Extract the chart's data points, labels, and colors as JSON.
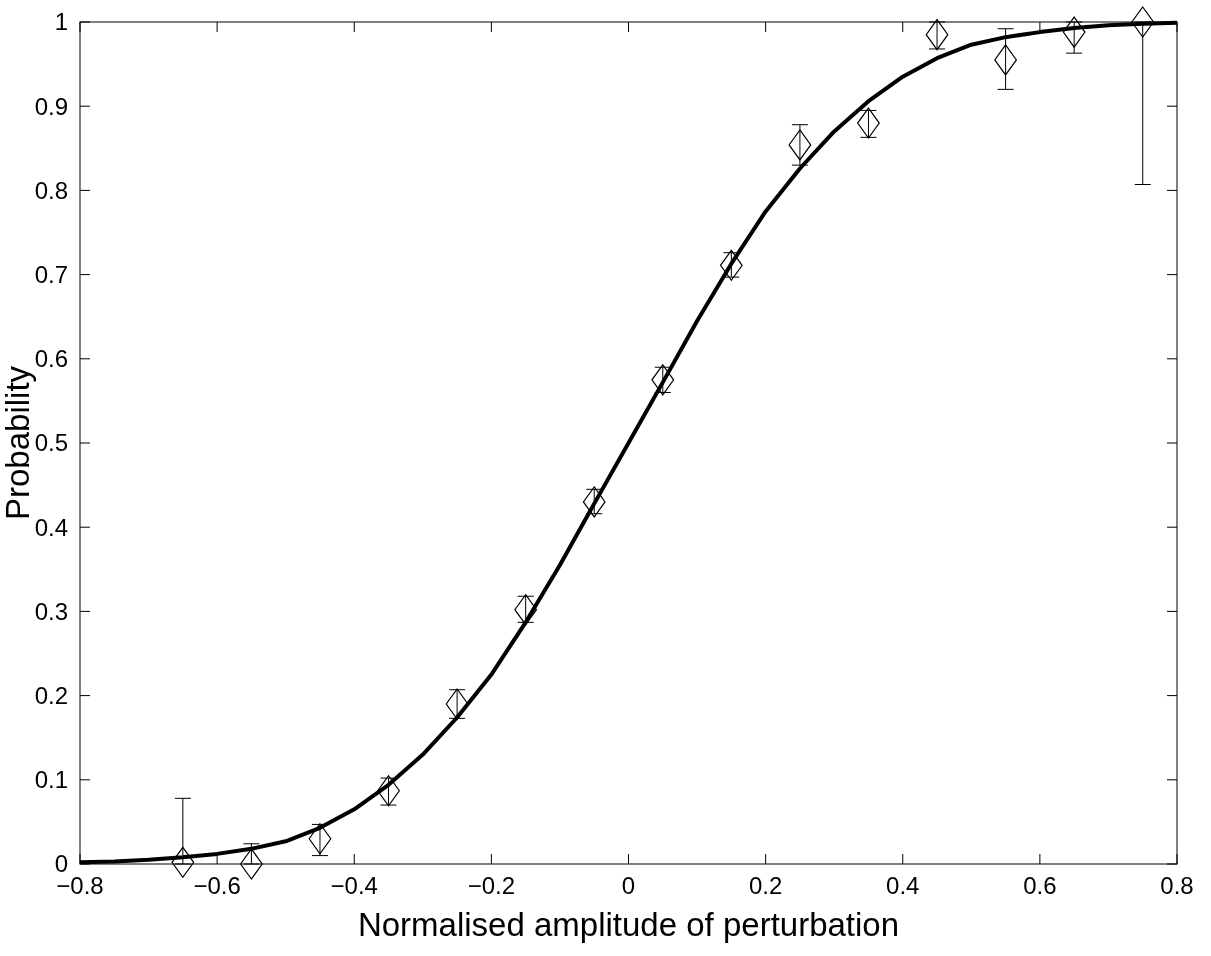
{
  "chart_data": {
    "type": "scatter",
    "xlabel": "Normalised amplitude of perturbation",
    "ylabel": "Probability",
    "xlim": [
      -0.8,
      0.8
    ],
    "ylim": [
      0,
      1
    ],
    "xticks": [
      {
        "value": -0.8,
        "label": "−0.8"
      },
      {
        "value": -0.6,
        "label": "−0.6"
      },
      {
        "value": -0.4,
        "label": "−0.4"
      },
      {
        "value": -0.2,
        "label": "−0.2"
      },
      0,
      0.2,
      0.4,
      0.6,
      0.8
    ],
    "yticks": [
      0,
      0.1,
      0.2,
      0.3,
      0.4,
      0.5,
      0.6,
      0.7,
      0.8,
      0.9,
      1
    ],
    "grid": false,
    "series": [
      {
        "type": "line",
        "color": "#000000",
        "marker": "none",
        "line_style": "solid",
        "x": [
          -0.8,
          -0.75,
          -0.7,
          -0.65,
          -0.6,
          -0.55,
          -0.5,
          -0.45,
          -0.4,
          -0.35,
          -0.3,
          -0.25,
          -0.2,
          -0.15,
          -0.1,
          -0.05,
          0,
          0.05,
          0.1,
          0.15,
          0.2,
          0.25,
          0.3,
          0.35,
          0.4,
          0.45,
          0.5,
          0.55,
          0.6,
          0.65,
          0.7,
          0.75,
          0.8
        ],
        "values": [
          0.002,
          0.003,
          0.005,
          0.008,
          0.012,
          0.018,
          0.027,
          0.043,
          0.065,
          0.094,
          0.13,
          0.174,
          0.225,
          0.287,
          0.355,
          0.428,
          0.5,
          0.572,
          0.645,
          0.713,
          0.775,
          0.826,
          0.87,
          0.906,
          0.935,
          0.957,
          0.973,
          0.982,
          0.988,
          0.993,
          0.996,
          0.998,
          0.999
        ]
      },
      {
        "type": "scatter",
        "color": "#000000",
        "marker": "diamond",
        "x": [
          -0.65,
          -0.55,
          -0.45,
          -0.35,
          -0.25,
          -0.15,
          -0.05,
          0.05,
          0.15,
          0.25,
          0.35,
          0.45,
          0.55,
          0.65,
          0.75
        ],
        "values": [
          0.002,
          0.0,
          0.03,
          0.087,
          0.19,
          0.302,
          0.43,
          0.575,
          0.711,
          0.854,
          0.88,
          0.985,
          0.955,
          0.988,
          1.0
        ],
        "errors": [
          [
            0,
            0.078
          ],
          [
            0,
            0.024
          ],
          [
            0.01,
            0.047
          ],
          [
            0.07,
            0.102
          ],
          [
            0.173,
            0.207
          ],
          [
            0.287,
            0.318
          ],
          [
            0.416,
            0.445
          ],
          [
            0.56,
            0.59
          ],
          [
            0.697,
            0.726
          ],
          [
            0.83,
            0.878
          ],
          [
            0.863,
            0.895
          ],
          [
            0.968,
            1.0
          ],
          [
            0.92,
            0.992
          ],
          [
            0.963,
            1.0
          ],
          [
            0.807,
            1.0
          ]
        ]
      }
    ]
  }
}
